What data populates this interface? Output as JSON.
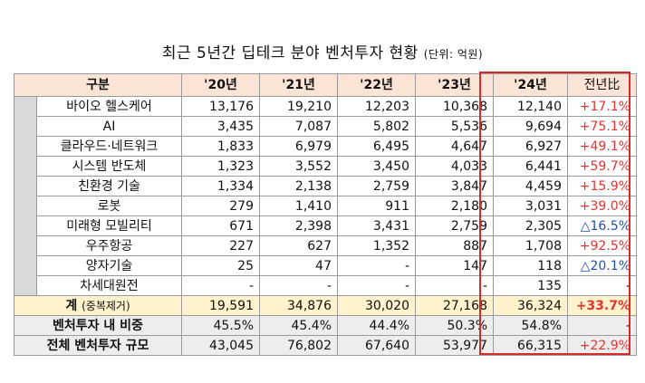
{
  "title": "최근 5년간 딥테크 분야 벤처투자 현황",
  "unit": "(단위: 억원)",
  "header": {
    "category": "구분",
    "years": [
      "'20년",
      "'21년",
      "'22년",
      "'23년",
      "'24년"
    ],
    "yoy": "전년比"
  },
  "rows": [
    {
      "name": "바이오 헬스케어",
      "values": [
        "13,176",
        "19,210",
        "12,203",
        "10,368",
        "12,140"
      ],
      "yoy": "+17.1%"
    },
    {
      "name": "AI",
      "values": [
        "3,435",
        "7,087",
        "5,802",
        "5,536",
        "9,694"
      ],
      "yoy": "+75.1%"
    },
    {
      "name": "클라우드·네트워크",
      "values": [
        "1,833",
        "6,979",
        "6,495",
        "4,647",
        "6,927"
      ],
      "yoy": "+49.1%"
    },
    {
      "name": "시스템 반도체",
      "values": [
        "1,323",
        "3,552",
        "3,450",
        "4,033",
        "6,441"
      ],
      "yoy": "+59.7%"
    },
    {
      "name": "친환경 기술",
      "values": [
        "1,334",
        "2,138",
        "2,759",
        "3,847",
        "4,459"
      ],
      "yoy": "+15.9%"
    },
    {
      "name": "로봇",
      "values": [
        "279",
        "1,410",
        "911",
        "2,180",
        "3,031"
      ],
      "yoy": "+39.0%"
    },
    {
      "name": "미래형 모빌리티",
      "values": [
        "671",
        "2,398",
        "3,431",
        "2,759",
        "2,305"
      ],
      "yoy": "△16.5%"
    },
    {
      "name": "우주항공",
      "values": [
        "227",
        "627",
        "1,352",
        "887",
        "1,708"
      ],
      "yoy": "+92.5%"
    },
    {
      "name": "양자기술",
      "values": [
        "25",
        "47",
        "-",
        "147",
        "118"
      ],
      "yoy": "△20.1%"
    },
    {
      "name": "차세대원전",
      "values": [
        "-",
        "-",
        "-",
        "-",
        "135"
      ],
      "yoy": "-"
    }
  ],
  "total": {
    "label": "계",
    "sub": "(중복제거)",
    "values": [
      "19,591",
      "34,876",
      "30,020",
      "27,168",
      "36,324"
    ],
    "yoy": "+33.7%"
  },
  "share": {
    "label": "벤처투자 내 비중",
    "values": [
      "45.5%",
      "45.4%",
      "44.4%",
      "50.3%",
      "54.8%"
    ],
    "yoy": "-"
  },
  "scale": {
    "label": "전체 벤처투자 규모",
    "values": [
      "43,045",
      "76,802",
      "67,640",
      "53,977",
      "66,315"
    ],
    "yoy": "+22.9%"
  }
}
